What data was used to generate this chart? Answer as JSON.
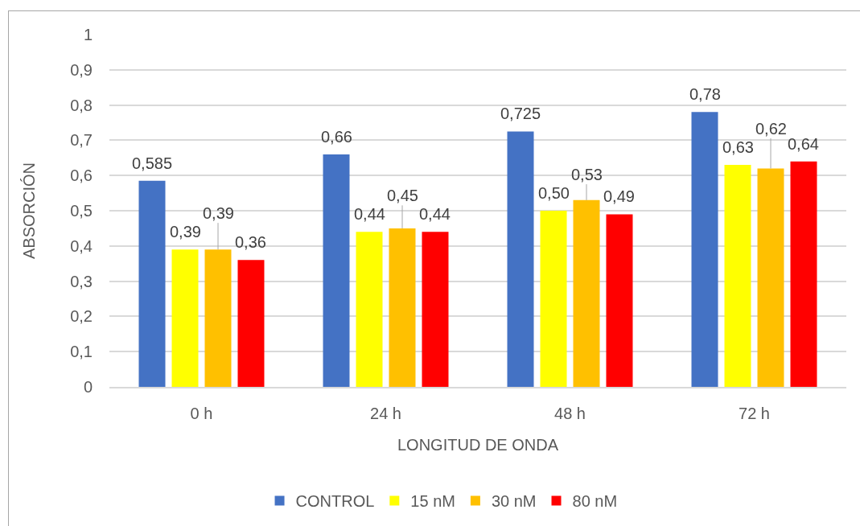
{
  "chart_data": {
    "type": "bar",
    "xlabel": "LONGITUD DE ONDA",
    "ylabel": "ABSORCIÓN",
    "categories": [
      "0 h",
      "24 h",
      "48 h",
      "72 h"
    ],
    "series": [
      {
        "name": "CONTROL",
        "color": "#4472c4",
        "values": [
          0.585,
          0.66,
          0.725,
          0.78
        ],
        "value_labels": [
          "0,585",
          "0,66",
          "0,725",
          "0,78"
        ]
      },
      {
        "name": "15 nM",
        "color": "#ffff00",
        "values": [
          0.39,
          0.44,
          0.5,
          0.63
        ],
        "value_labels": [
          "0,39",
          "0,44",
          "0,50",
          "0,63"
        ]
      },
      {
        "name": "30 nM",
        "color": "#ffc000",
        "values": [
          0.39,
          0.45,
          0.53,
          0.62
        ],
        "value_labels": [
          "0,39",
          "0,45",
          "0,53",
          "0,62"
        ]
      },
      {
        "name": "80 nM",
        "color": "#ff0000",
        "values": [
          0.36,
          0.44,
          0.49,
          0.64
        ],
        "value_labels": [
          "0,36",
          "0,44",
          "0,49",
          "0,64"
        ]
      }
    ],
    "ylim": [
      0,
      1
    ],
    "yticks": [
      0,
      {
        "value": 0.1,
        "label": "0,1"
      },
      {
        "value": 0.2,
        "label": "0,2"
      },
      {
        "value": 0.3,
        "label": "0,3"
      },
      {
        "value": 0.4,
        "label": "0,4"
      },
      {
        "value": 0.5,
        "label": "0,5"
      },
      {
        "value": 0.6,
        "label": "0,6"
      },
      {
        "value": 0.7,
        "label": "0,7"
      },
      {
        "value": 0.8,
        "label": "0,8"
      },
      {
        "value": 0.9,
        "label": "0,9"
      },
      1
    ],
    "grid": "y",
    "legend": "bottom"
  }
}
